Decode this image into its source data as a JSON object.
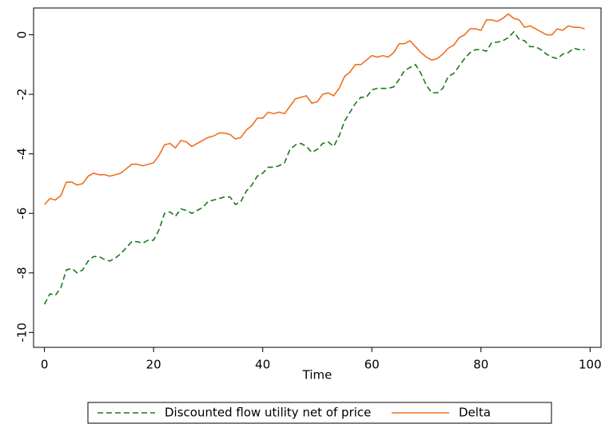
{
  "chart_data": {
    "type": "line",
    "xlabel": "Time",
    "x": [
      0,
      1,
      2,
      3,
      4,
      5,
      6,
      7,
      8,
      9,
      10,
      11,
      12,
      13,
      14,
      15,
      16,
      17,
      18,
      19,
      20,
      21,
      22,
      23,
      24,
      25,
      26,
      27,
      28,
      29,
      30,
      31,
      32,
      33,
      34,
      35,
      36,
      37,
      38,
      39,
      40,
      41,
      42,
      43,
      44,
      45,
      46,
      47,
      48,
      49,
      50,
      51,
      52,
      53,
      54,
      55,
      56,
      57,
      58,
      59,
      60,
      61,
      62,
      63,
      64,
      65,
      66,
      67,
      68,
      69,
      70,
      71,
      72,
      73,
      74,
      75,
      76,
      77,
      78,
      79,
      80,
      81,
      82,
      83,
      84,
      85,
      86,
      87,
      88,
      89,
      90,
      91,
      92,
      93,
      94,
      95,
      96,
      97,
      98,
      99
    ],
    "series": [
      {
        "name": "Discounted flow utility net of price",
        "color": "#1a7a1a",
        "line_style": "dashed",
        "values": [
          -9.05,
          -8.7,
          -8.75,
          -8.5,
          -7.9,
          -7.85,
          -8.0,
          -7.9,
          -7.6,
          -7.45,
          -7.45,
          -7.55,
          -7.6,
          -7.5,
          -7.35,
          -7.15,
          -6.95,
          -6.95,
          -7.0,
          -6.9,
          -6.9,
          -6.55,
          -6.0,
          -5.95,
          -6.1,
          -5.85,
          -5.9,
          -6.0,
          -5.9,
          -5.8,
          -5.6,
          -5.55,
          -5.5,
          -5.45,
          -5.45,
          -5.7,
          -5.6,
          -5.25,
          -5.05,
          -4.75,
          -4.65,
          -4.45,
          -4.45,
          -4.4,
          -4.3,
          -3.85,
          -3.7,
          -3.65,
          -3.75,
          -3.95,
          -3.85,
          -3.65,
          -3.6,
          -3.75,
          -3.4,
          -2.9,
          -2.6,
          -2.3,
          -2.1,
          -2.1,
          -1.85,
          -1.8,
          -1.8,
          -1.8,
          -1.75,
          -1.5,
          -1.2,
          -1.1,
          -1.0,
          -1.3,
          -1.7,
          -1.95,
          -1.95,
          -1.8,
          -1.4,
          -1.3,
          -1.05,
          -0.8,
          -0.6,
          -0.5,
          -0.5,
          -0.55,
          -0.25,
          -0.25,
          -0.2,
          -0.1,
          0.1,
          -0.15,
          -0.2,
          -0.4,
          -0.4,
          -0.5,
          -0.65,
          -0.75,
          -0.8,
          -0.65,
          -0.6,
          -0.45,
          -0.5,
          -0.5
        ]
      },
      {
        "name": "Delta",
        "color": "#f07020",
        "line_style": "solid",
        "values": [
          -5.7,
          -5.5,
          -5.55,
          -5.4,
          -4.95,
          -4.95,
          -5.05,
          -5.0,
          -4.75,
          -4.65,
          -4.7,
          -4.7,
          -4.75,
          -4.7,
          -4.65,
          -4.5,
          -4.35,
          -4.35,
          -4.4,
          -4.35,
          -4.3,
          -4.05,
          -3.7,
          -3.65,
          -3.8,
          -3.55,
          -3.6,
          -3.75,
          -3.65,
          -3.55,
          -3.45,
          -3.4,
          -3.3,
          -3.3,
          -3.35,
          -3.5,
          -3.45,
          -3.2,
          -3.05,
          -2.8,
          -2.8,
          -2.6,
          -2.65,
          -2.6,
          -2.65,
          -2.4,
          -2.15,
          -2.1,
          -2.05,
          -2.3,
          -2.25,
          -2.0,
          -1.95,
          -2.05,
          -1.8,
          -1.4,
          -1.25,
          -1.0,
          -1.0,
          -0.85,
          -0.7,
          -0.75,
          -0.7,
          -0.75,
          -0.6,
          -0.3,
          -0.3,
          -0.2,
          -0.4,
          -0.6,
          -0.75,
          -0.85,
          -0.8,
          -0.65,
          -0.45,
          -0.35,
          -0.1,
          0.0,
          0.2,
          0.2,
          0.15,
          0.5,
          0.5,
          0.45,
          0.55,
          0.7,
          0.55,
          0.5,
          0.25,
          0.3,
          0.2,
          0.1,
          0.0,
          0.0,
          0.2,
          0.15,
          0.3,
          0.25,
          0.25,
          0.2
        ]
      }
    ],
    "xlim": [
      -2,
      102
    ],
    "ylim": [
      -10.5,
      0.9
    ],
    "xticks": [
      0,
      20,
      40,
      60,
      80,
      100
    ],
    "yticks": [
      -10,
      -8,
      -6,
      -4,
      -2,
      0
    ],
    "legend": "bottom"
  }
}
